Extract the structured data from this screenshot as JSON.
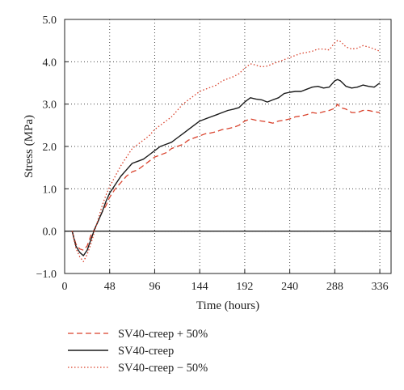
{
  "chart_data": {
    "type": "line",
    "xlabel": "Time (hours)",
    "ylabel": "Stress (MPa)",
    "xlim": [
      0,
      348
    ],
    "ylim": [
      -1.0,
      5.0
    ],
    "x_ticks": [
      0,
      48,
      96,
      144,
      192,
      240,
      288,
      336
    ],
    "y_ticks": [
      -1.0,
      0.0,
      1.0,
      2.0,
      3.0,
      4.0,
      5.0
    ],
    "x_tick_labels": [
      "0",
      "48",
      "96",
      "144",
      "192",
      "240",
      "288",
      "336"
    ],
    "y_tick_labels": [
      "−1.0",
      "0.0",
      "1.0",
      "2.0",
      "3.0",
      "4.0",
      "5.0"
    ],
    "grid": "dotted",
    "legend_position": "bottom-left",
    "series": [
      {
        "name": "SV40-creep + 50%",
        "color": "#d9412b",
        "style": "dashed",
        "x": [
          8,
          12,
          16,
          20,
          24,
          28,
          32,
          36,
          40,
          44,
          48,
          54,
          60,
          66,
          72,
          78,
          84,
          90,
          96,
          102,
          108,
          114,
          120,
          126,
          132,
          138,
          144,
          150,
          156,
          162,
          168,
          174,
          180,
          186,
          192,
          198,
          204,
          210,
          216,
          222,
          228,
          234,
          240,
          246,
          252,
          258,
          264,
          270,
          276,
          282,
          288,
          291,
          294,
          300,
          306,
          312,
          318,
          324,
          330,
          336
        ],
        "y": [
          0,
          -0.3,
          -0.42,
          -0.45,
          -0.35,
          -0.1,
          0.05,
          0.25,
          0.45,
          0.6,
          0.8,
          1.0,
          1.15,
          1.3,
          1.4,
          1.45,
          1.55,
          1.65,
          1.75,
          1.8,
          1.85,
          1.95,
          2.0,
          2.05,
          2.15,
          2.2,
          2.25,
          2.3,
          2.32,
          2.35,
          2.4,
          2.42,
          2.45,
          2.5,
          2.6,
          2.65,
          2.62,
          2.6,
          2.58,
          2.55,
          2.6,
          2.62,
          2.65,
          2.7,
          2.72,
          2.75,
          2.8,
          2.78,
          2.82,
          2.85,
          2.9,
          3.0,
          2.92,
          2.88,
          2.8,
          2.8,
          2.85,
          2.85,
          2.82,
          2.8
        ]
      },
      {
        "name": "SV40-creep",
        "color": "#1a1a1a",
        "style": "solid",
        "x": [
          8,
          12,
          16,
          20,
          24,
          28,
          32,
          36,
          40,
          44,
          48,
          54,
          60,
          66,
          72,
          78,
          84,
          90,
          96,
          102,
          108,
          114,
          120,
          126,
          132,
          138,
          144,
          150,
          156,
          162,
          168,
          174,
          180,
          186,
          192,
          198,
          204,
          210,
          216,
          222,
          228,
          234,
          240,
          246,
          252,
          258,
          264,
          270,
          276,
          282,
          288,
          291,
          294,
          300,
          306,
          312,
          318,
          324,
          330,
          336
        ],
        "y": [
          0,
          -0.35,
          -0.5,
          -0.58,
          -0.45,
          -0.2,
          0.05,
          0.25,
          0.45,
          0.7,
          0.9,
          1.1,
          1.3,
          1.45,
          1.6,
          1.65,
          1.7,
          1.8,
          1.9,
          2.0,
          2.05,
          2.1,
          2.2,
          2.3,
          2.4,
          2.5,
          2.6,
          2.65,
          2.7,
          2.75,
          2.8,
          2.85,
          2.88,
          2.92,
          3.05,
          3.15,
          3.12,
          3.1,
          3.05,
          3.1,
          3.15,
          3.25,
          3.28,
          3.3,
          3.3,
          3.35,
          3.4,
          3.42,
          3.38,
          3.4,
          3.55,
          3.58,
          3.55,
          3.42,
          3.38,
          3.4,
          3.45,
          3.42,
          3.4,
          3.5
        ]
      },
      {
        "name": "SV40-creep − 50%",
        "color": "#d9412b",
        "style": "dotted",
        "x": [
          8,
          12,
          16,
          20,
          24,
          28,
          32,
          36,
          40,
          44,
          48,
          54,
          60,
          66,
          72,
          78,
          84,
          90,
          96,
          102,
          108,
          114,
          120,
          126,
          132,
          138,
          144,
          150,
          156,
          162,
          168,
          174,
          180,
          186,
          192,
          198,
          204,
          210,
          216,
          222,
          228,
          234,
          240,
          246,
          252,
          258,
          264,
          270,
          276,
          282,
          288,
          291,
          294,
          300,
          306,
          312,
          318,
          324,
          330,
          336
        ],
        "y": [
          0,
          -0.4,
          -0.6,
          -0.72,
          -0.55,
          -0.3,
          0.0,
          0.3,
          0.6,
          0.85,
          1.05,
          1.3,
          1.55,
          1.75,
          1.95,
          2.05,
          2.15,
          2.25,
          2.4,
          2.5,
          2.6,
          2.7,
          2.85,
          3.0,
          3.1,
          3.2,
          3.3,
          3.35,
          3.4,
          3.45,
          3.55,
          3.6,
          3.65,
          3.72,
          3.85,
          3.95,
          3.92,
          3.88,
          3.9,
          3.95,
          4.0,
          4.05,
          4.1,
          4.15,
          4.2,
          4.22,
          4.25,
          4.3,
          4.3,
          4.28,
          4.45,
          4.5,
          4.48,
          4.35,
          4.3,
          4.32,
          4.38,
          4.35,
          4.3,
          4.25
        ]
      }
    ]
  }
}
